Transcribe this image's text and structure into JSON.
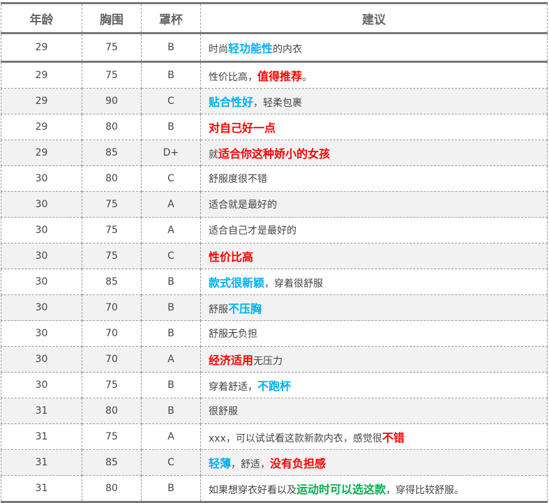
{
  "colors": {
    "blue": "#00b0f0",
    "red": "#ff0000",
    "green": "#00b050",
    "text": "#444444"
  },
  "headers": [
    "年龄",
    "胸围",
    "罩杯",
    "建议"
  ],
  "rows": [
    {
      "age": "29",
      "bust": "75",
      "cup": "B",
      "suggestion": [
        [
          "时尚",
          ""
        ],
        [
          "轻功能性",
          "blue"
        ],
        [
          "的内衣",
          ""
        ]
      ]
    },
    {
      "age": "29",
      "bust": "75",
      "cup": "B",
      "suggestion": [
        [
          "性价比高，",
          ""
        ],
        [
          "值得推荐",
          "red"
        ],
        [
          "。",
          ""
        ]
      ]
    },
    {
      "age": "29",
      "bust": "90",
      "cup": "C",
      "suggestion": [
        [
          "贴合性好",
          "blue"
        ],
        [
          "，轻柔包裹",
          ""
        ]
      ]
    },
    {
      "age": "29",
      "bust": "80",
      "cup": "B",
      "suggestion": [
        [
          "对自己好一点",
          "red"
        ]
      ]
    },
    {
      "age": "29",
      "bust": "85",
      "cup": "D+",
      "suggestion": [
        [
          "就",
          ""
        ],
        [
          "适合你这种娇小的女孩",
          "red"
        ]
      ]
    },
    {
      "age": "30",
      "bust": "80",
      "cup": "C",
      "suggestion": [
        [
          "舒服度很不错",
          ""
        ]
      ]
    },
    {
      "age": "30",
      "bust": "75",
      "cup": "A",
      "suggestion": [
        [
          "适合就是最好的",
          ""
        ]
      ]
    },
    {
      "age": "30",
      "bust": "75",
      "cup": "A",
      "suggestion": [
        [
          "适合自己才是最好的",
          ""
        ]
      ]
    },
    {
      "age": "30",
      "bust": "75",
      "cup": "C",
      "suggestion": [
        [
          "性价比高",
          "red"
        ]
      ]
    },
    {
      "age": "30",
      "bust": "85",
      "cup": "B",
      "suggestion": [
        [
          "款式很新颖",
          "blue"
        ],
        [
          "，穿着很舒服",
          ""
        ]
      ]
    },
    {
      "age": "30",
      "bust": "70",
      "cup": "B",
      "suggestion": [
        [
          "舒服",
          ""
        ],
        [
          "不压胸",
          "blue"
        ]
      ]
    },
    {
      "age": "30",
      "bust": "70",
      "cup": "B",
      "suggestion": [
        [
          "舒服无负担",
          ""
        ]
      ]
    },
    {
      "age": "30",
      "bust": "70",
      "cup": "A",
      "suggestion": [
        [
          "经济适用",
          "red"
        ],
        [
          "无压力",
          ""
        ]
      ]
    },
    {
      "age": "30",
      "bust": "75",
      "cup": "B",
      "suggestion": [
        [
          "穿着舒适，",
          ""
        ],
        [
          "不跑杯",
          "blue"
        ]
      ]
    },
    {
      "age": "31",
      "bust": "80",
      "cup": "B",
      "suggestion": [
        [
          "很舒服",
          ""
        ]
      ]
    },
    {
      "age": "31",
      "bust": "75",
      "cup": "A",
      "suggestion": [
        [
          "xxx，可以试试看这款新款内衣，感觉很",
          ""
        ],
        [
          "不错",
          "red"
        ]
      ]
    },
    {
      "age": "31",
      "bust": "85",
      "cup": "C",
      "suggestion": [
        [
          "轻薄",
          "blue"
        ],
        [
          "，舒适，",
          ""
        ],
        [
          "没有负担感",
          "red"
        ]
      ]
    },
    {
      "age": "31",
      "bust": "80",
      "cup": "B",
      "suggestion": [
        [
          "如果想穿衣好看以及",
          ""
        ],
        [
          "运动时可以选这款",
          "green"
        ],
        [
          "，穿得比较舒服。",
          ""
        ]
      ]
    }
  ]
}
